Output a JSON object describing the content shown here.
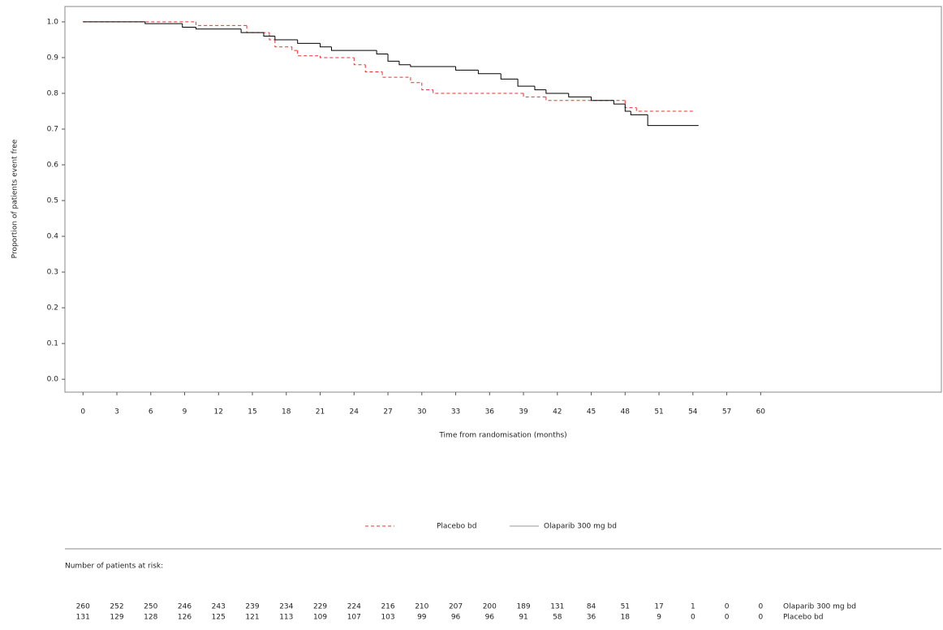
{
  "chart_data": {
    "type": "step",
    "x_label": "Time from randomisation (months)",
    "y_label": "Proportion of patients event free",
    "xlim": [
      -1.6,
      76
    ],
    "ylim": [
      -0.036,
      1.043
    ],
    "xticks": [
      0,
      3,
      6,
      9,
      12,
      15,
      18,
      21,
      24,
      27,
      30,
      33,
      36,
      39,
      42,
      45,
      48,
      51,
      54,
      57,
      60
    ],
    "yticks": [
      {
        "value": 0,
        "label": "0.0"
      },
      0.1,
      0.2,
      0.3,
      0.4,
      0.5,
      0.6,
      0.7,
      0.8,
      0.9,
      {
        "value": 1,
        "label": "1.0"
      }
    ],
    "legend": "bottom",
    "series": [
      {
        "name": "Placebo bd",
        "color": "#e8312f",
        "line_style": "dashed",
        "x": [
          0,
          10,
          14.5,
          16.5,
          17,
          18.5,
          19,
          21,
          24,
          25,
          26.5,
          29,
          30,
          31,
          39,
          41,
          48,
          49,
          54
        ],
        "values": [
          1.0,
          0.99,
          0.97,
          0.95,
          0.93,
          0.92,
          0.905,
          0.9,
          0.88,
          0.86,
          0.845,
          0.83,
          0.81,
          0.8,
          0.79,
          0.78,
          0.76,
          0.75,
          0.75
        ],
        "at_risk": [
          131,
          129,
          128,
          126,
          125,
          121,
          113,
          109,
          107,
          103,
          99,
          96,
          96,
          91,
          58,
          36,
          18,
          9,
          0,
          0,
          0
        ]
      },
      {
        "name": "Olaparib 300 mg bd",
        "color": "#000000",
        "line_style": "solid",
        "x": [
          0,
          5.5,
          8.8,
          10,
          14,
          16,
          17,
          19,
          21,
          22,
          26,
          27,
          28,
          29,
          33,
          35,
          37,
          38.5,
          40,
          41,
          43,
          45,
          47,
          48,
          48.5,
          50,
          54.5
        ],
        "values": [
          1.0,
          0.995,
          0.985,
          0.98,
          0.97,
          0.96,
          0.95,
          0.94,
          0.93,
          0.92,
          0.91,
          0.89,
          0.88,
          0.875,
          0.865,
          0.855,
          0.84,
          0.82,
          0.81,
          0.8,
          0.79,
          0.78,
          0.77,
          0.75,
          0.74,
          0.71,
          0.71
        ],
        "at_risk": [
          260,
          252,
          250,
          246,
          243,
          239,
          234,
          229,
          224,
          216,
          210,
          207,
          200,
          189,
          131,
          84,
          51,
          17,
          1,
          0,
          0
        ]
      }
    ],
    "risk_table_title": "Number of patients at risk:"
  }
}
